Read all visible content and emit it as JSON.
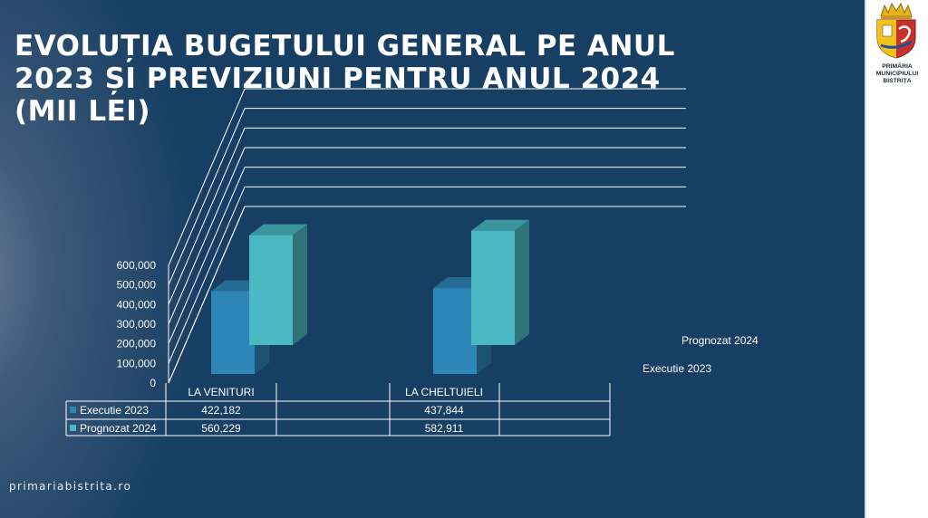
{
  "slide": {
    "title_lines": [
      "EVOLUȚIA BUGETULUI GENERAL PE ANUL",
      "2023 ȘI PREVIZIUNI PENTRU ANUL 2024",
      "(MII LEI)"
    ],
    "footer": "primariabistrita.ro",
    "brand_lines": [
      "PRIMĂRIA",
      "MUNICIPIULUI",
      "BISTRIȚA"
    ],
    "background_color": "#173f63"
  },
  "chart_data": {
    "type": "bar",
    "categories": [
      "LA VENITURI",
      "LA CHELTUIELI"
    ],
    "series": [
      {
        "name": "Executie 2023",
        "values": [
          422182,
          437844
        ],
        "color": "#2e86b8"
      },
      {
        "name": "Prognozat  2024",
        "values": [
          560229,
          582911
        ],
        "color": "#4bb9c3"
      }
    ],
    "y_ticks": [
      "0",
      "100,000",
      "200,000",
      "300,000",
      "400,000",
      "500,000",
      "600,000"
    ],
    "ylim": [
      0,
      600000
    ],
    "table_values": [
      [
        "422,182",
        "437,844"
      ],
      [
        "560,229",
        "582,911"
      ]
    ],
    "grid": true,
    "three_d": true,
    "legend": "data-table"
  }
}
